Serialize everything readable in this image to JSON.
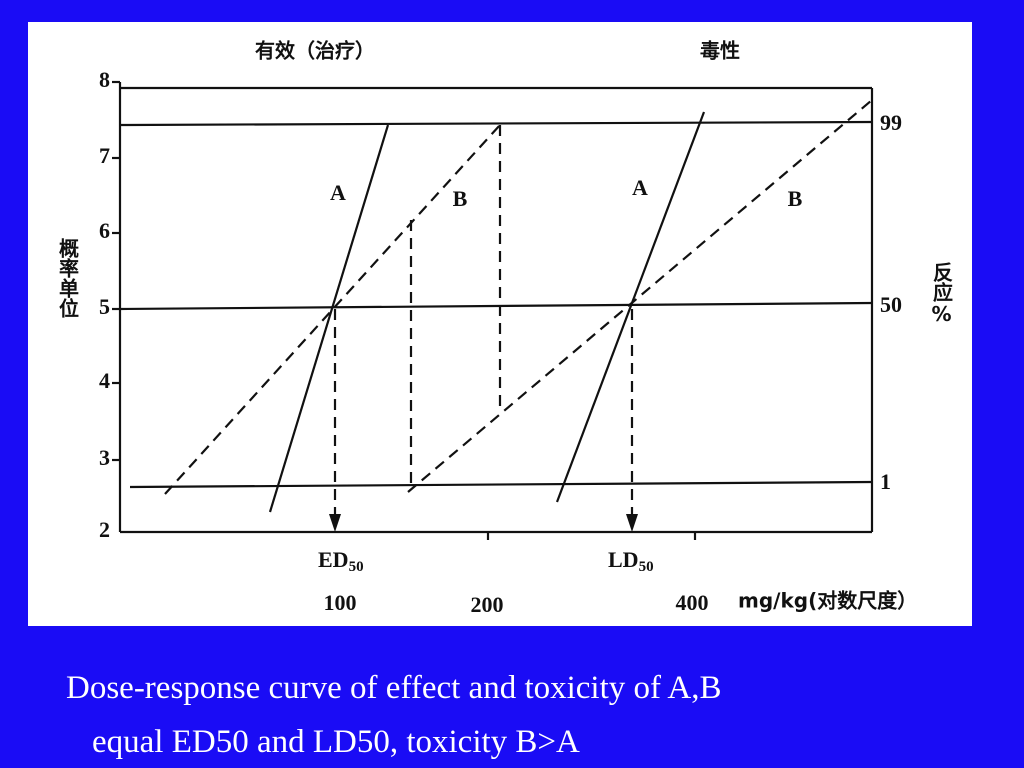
{
  "header": {
    "left": "有效（治疗）",
    "right": "毒性"
  },
  "y_axis": {
    "label": "概率单位",
    "ticks": [
      "8",
      "7",
      "6",
      "5",
      "4",
      "3",
      "2"
    ]
  },
  "right_axis": {
    "label": "反应%",
    "ticks": [
      "99",
      "50",
      "1"
    ]
  },
  "line_labels": [
    "A",
    "B",
    "A",
    "B"
  ],
  "markers": [
    {
      "main": "ED",
      "sub": "50"
    },
    {
      "main": "LD",
      "sub": "50"
    }
  ],
  "x_axis": {
    "ticks": [
      "100",
      "200",
      "400"
    ],
    "unit": "mg/kg(对数尺度）"
  },
  "caption": [
    "Dose-response curve of effect and toxicity of A,B",
    "equal ED50 and LD50,  toxicity B>A"
  ]
}
